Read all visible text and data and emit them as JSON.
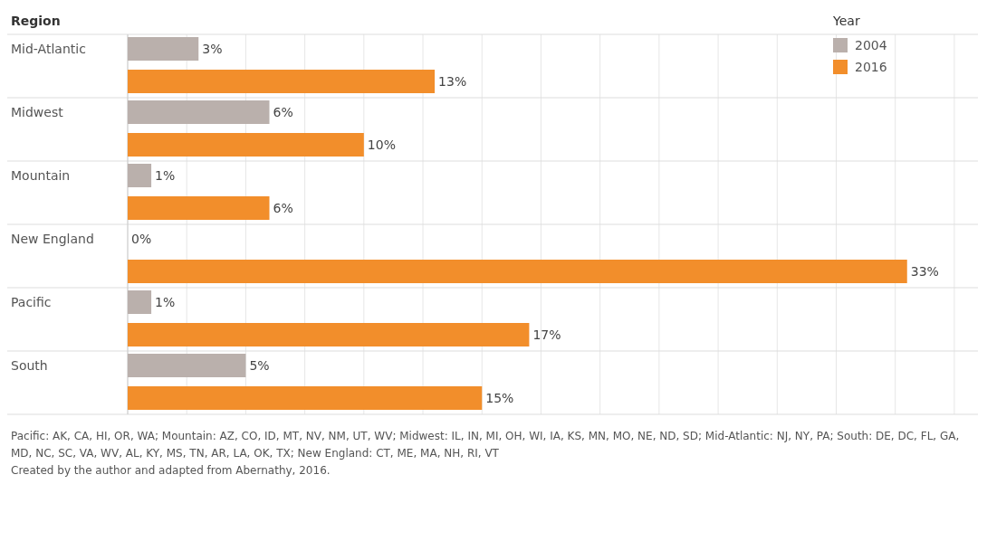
{
  "chart_data": {
    "type": "bar",
    "orientation": "horizontal",
    "ylabel": "Region",
    "legend_title": "Year",
    "legend": "top right",
    "grid": "x",
    "tick_labels": "y",
    "categories": [
      "Mid-Atlantic",
      "Midwest",
      "Mountain",
      "New England",
      "Pacific",
      "South"
    ],
    "xlim": [
      0,
      36
    ],
    "xticks": [
      {
        "value": 0,
        "label": null
      },
      {
        "value": 2.5,
        "label": null
      },
      {
        "value": 5,
        "label": null
      },
      {
        "value": 7.5,
        "label": null
      },
      {
        "value": 10,
        "label": null
      },
      {
        "value": 12.5,
        "label": null
      },
      {
        "value": 15,
        "label": null
      },
      {
        "value": 17.5,
        "label": null
      },
      {
        "value": 20,
        "label": null
      },
      {
        "value": 22.5,
        "label": null
      },
      {
        "value": 25,
        "label": null
      },
      {
        "value": 27.5,
        "label": null
      },
      {
        "value": 30,
        "label": null
      },
      {
        "value": 32.5,
        "label": null
      },
      {
        "value": 35,
        "label": null
      }
    ],
    "series": [
      {
        "name": "2004",
        "color": "#bab0ac",
        "values": [
          3,
          6,
          1,
          0,
          1,
          5
        ],
        "value_labels": [
          "3%",
          "6%",
          "1%",
          "0%",
          "1%",
          "5%"
        ]
      },
      {
        "name": "2016",
        "color": "#f28e2b",
        "values": [
          13,
          10,
          6,
          33,
          17,
          15
        ],
        "value_labels": [
          "13%",
          "10%",
          "6%",
          "33%",
          "17%",
          "15%"
        ]
      }
    ],
    "annotations": [
      "Pacific: AK, CA, HI, OR, WA; Mountain: AZ, CO, ID, MT, NV, NM, UT, WV; Midwest: IL, IN, MI, OH, WI, IA, KS, MN, MO, NE, ND, SD; Mid-Atlantic: NJ, NY, PA; South: DE, DC, FL, GA, MD, NC, SC, VA, WV, AL, KY, MS, TN, AR, LA, OK, TX; New England: CT, ME, MA, NH, RI, VT",
      "Created by the author and adapted from Abernathy, 2016."
    ]
  }
}
